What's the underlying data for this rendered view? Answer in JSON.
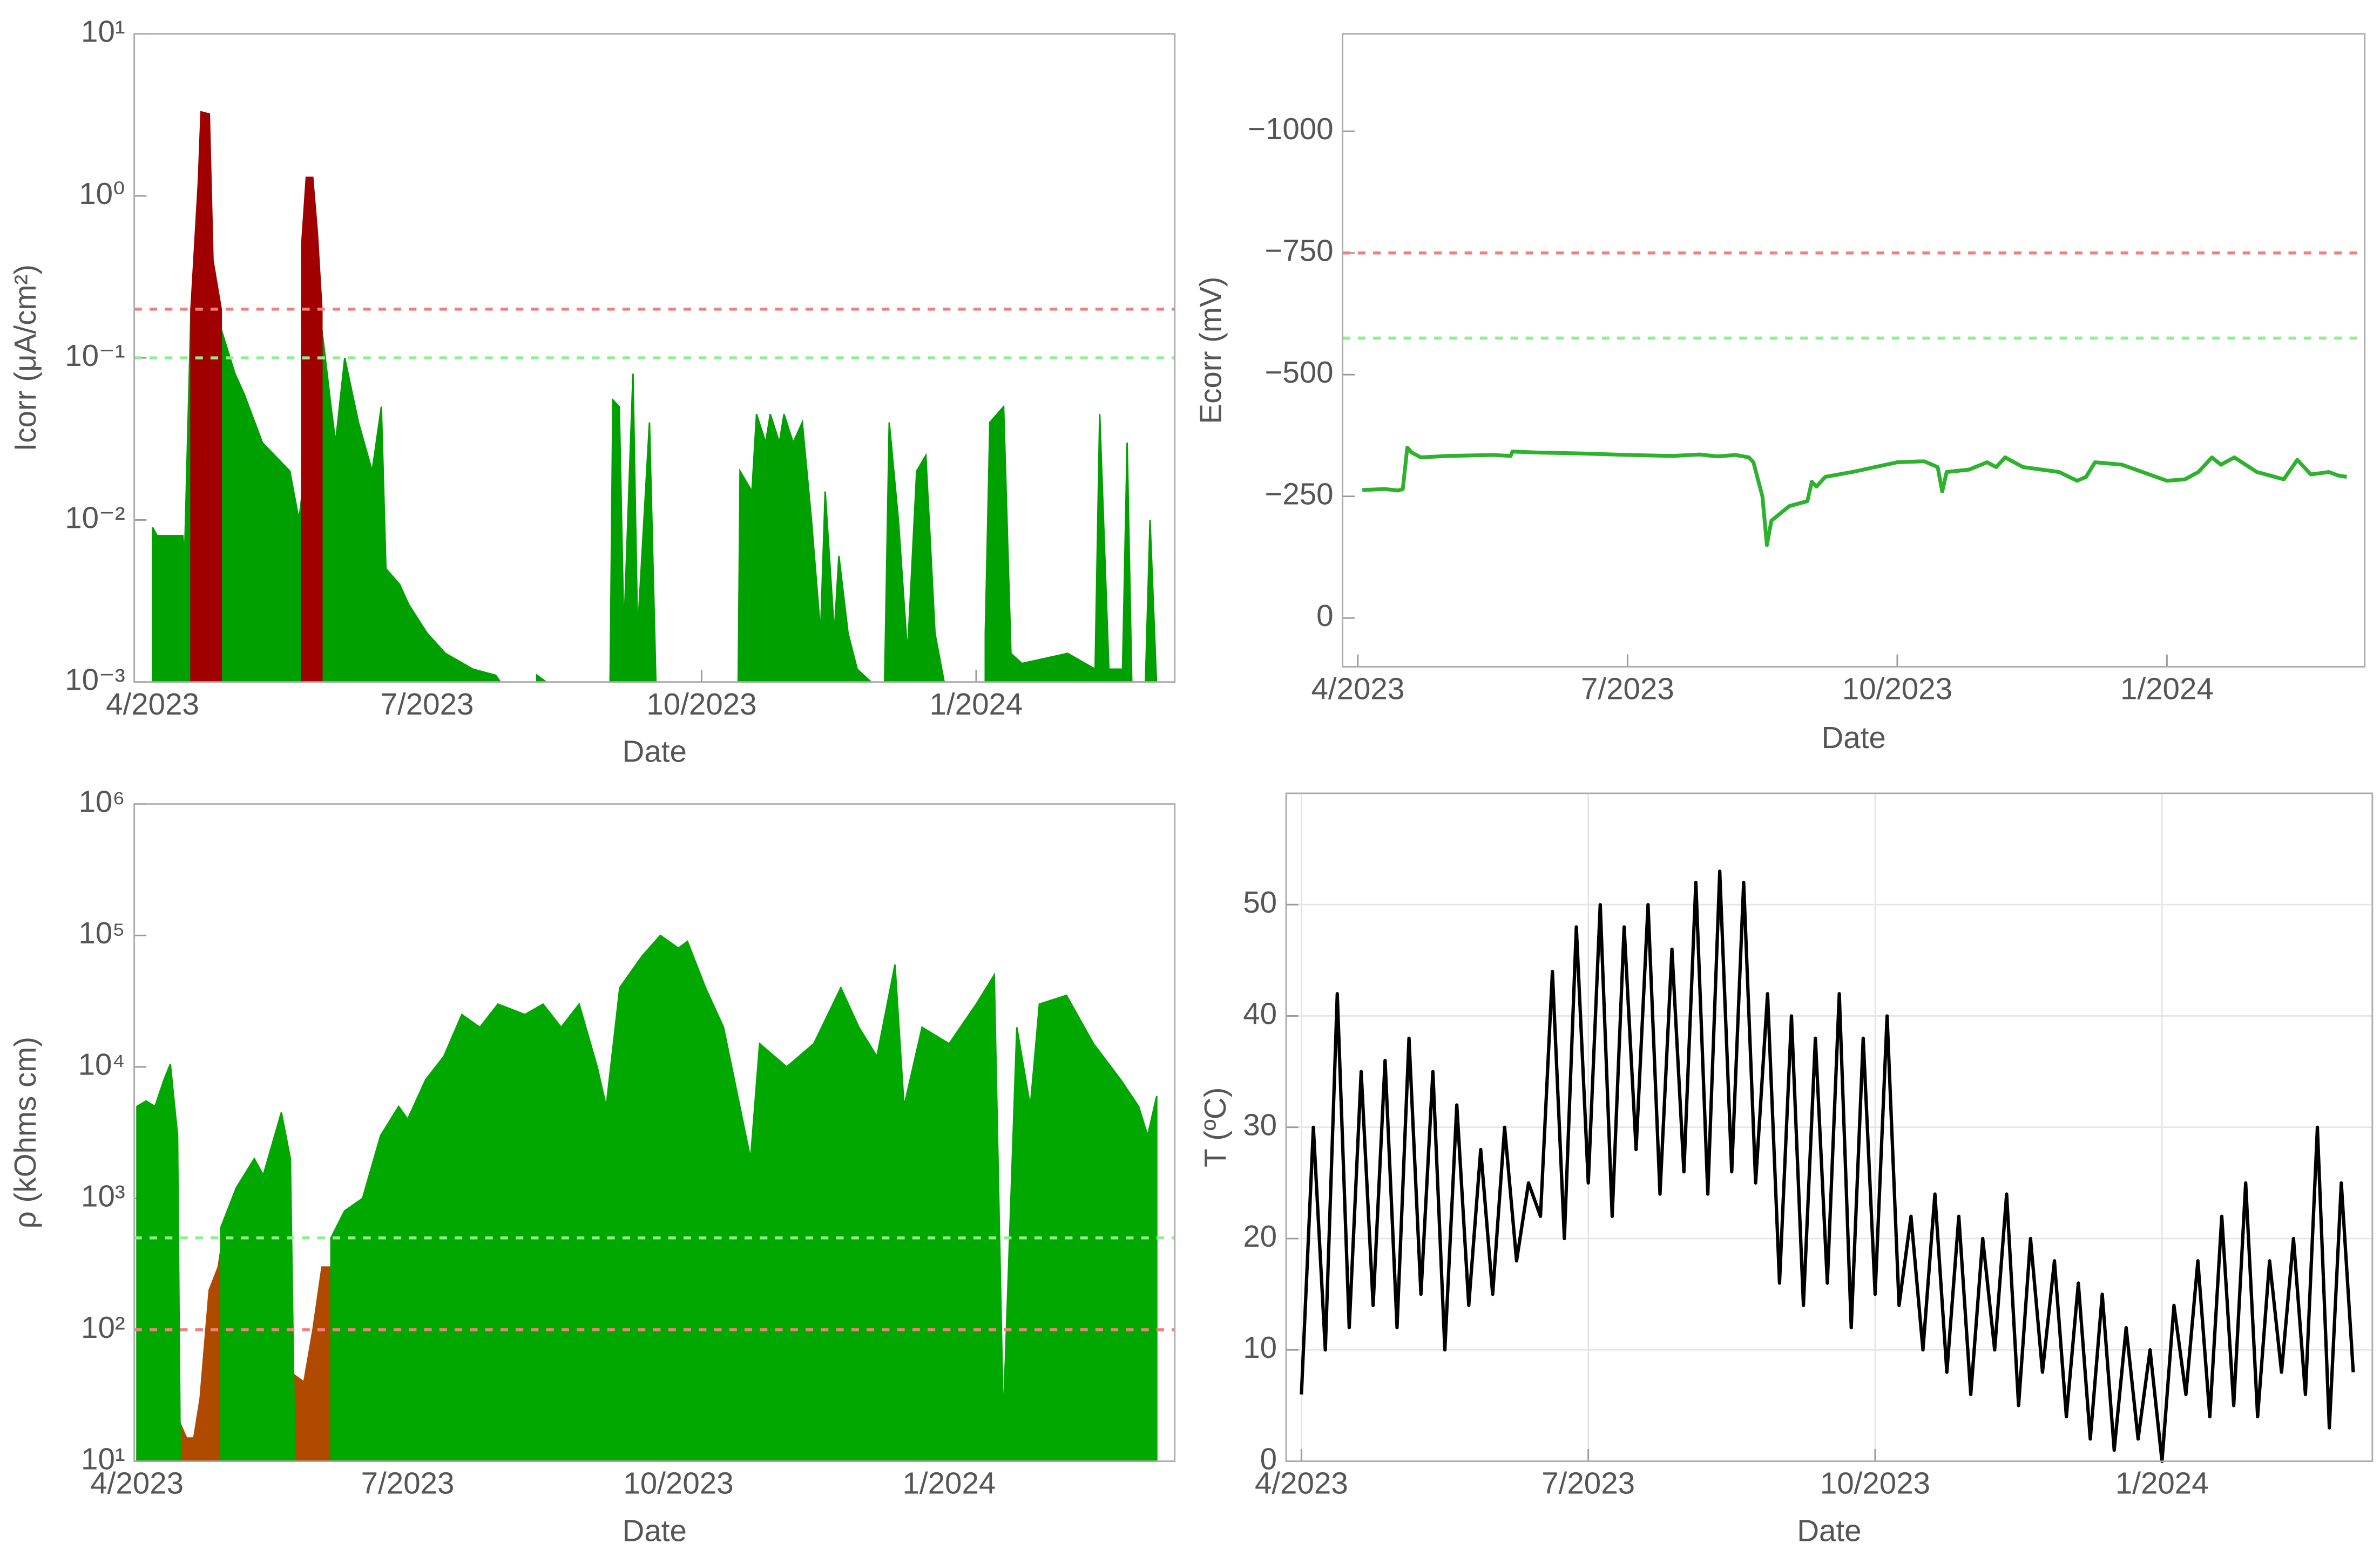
{
  "chart_data": [
    {
      "type": "area",
      "xlabel": "Date",
      "ylabel": "Icorr (μA/cm²)",
      "log_y": true,
      "xlim": [
        -0.2,
        11.17
      ],
      "xticks": [
        {
          "value": 0,
          "label": "4/2023"
        },
        {
          "value": 3,
          "label": "7/2023"
        },
        {
          "value": 6,
          "label": "10/2023"
        },
        {
          "value": 9,
          "label": "1/2024"
        }
      ],
      "ylim": [
        0.001,
        10
      ],
      "yticks": [
        {
          "value": 0.001,
          "label": "10⁻³"
        },
        {
          "value": 0.01,
          "label": "10⁻²"
        },
        {
          "value": 0.1,
          "label": "10⁻¹"
        },
        {
          "value": 1,
          "label": "10⁰"
        },
        {
          "value": 10,
          "label": "10¹"
        }
      ],
      "thresholds": [
        {
          "value": 0.2,
          "color": "#f08080"
        },
        {
          "value": 0.1,
          "color": "#90ee90"
        }
      ],
      "series": [
        {
          "color": "#00a000",
          "x": [
            0,
            0.05,
            0.33,
            0.35,
            0.42,
            0.75,
            0.9,
            1.0,
            1.2,
            1.5,
            1.6,
            1.85,
            1.95,
            2.0,
            2.1,
            2.25,
            2.4,
            2.5,
            2.55,
            2.7,
            2.8,
            3.0,
            3.2,
            3.5,
            3.75,
            3.8,
            null,
            4.2,
            4.3,
            null,
            5.0,
            5.03,
            5.1,
            5.15,
            5.25,
            5.3,
            5.43,
            5.5,
            null,
            6.4,
            6.42,
            6.55,
            6.6,
            6.7,
            6.75,
            6.85,
            6.9,
            7.0,
            7.1,
            7.2,
            7.3,
            7.35,
            7.45,
            7.5,
            7.6,
            7.7,
            7.85,
            null,
            8.0,
            8.05,
            8.15,
            8.25,
            8.35,
            8.45,
            8.55,
            8.65,
            null,
            9.1,
            9.15,
            9.3,
            9.38,
            9.5,
            10.0,
            10.3,
            10.35,
            10.45,
            10.6,
            10.65,
            10.7,
            10.85,
            10.9,
            10.97
          ],
          "values": [
            0.009,
            0.008,
            0.008,
            0.006,
            0.2,
            0.15,
            0.08,
            0.06,
            0.03,
            0.02,
            0.01,
            0.15,
            0.05,
            0.03,
            0.1,
            0.04,
            0.02,
            0.05,
            0.005,
            0.004,
            0.003,
            0.002,
            0.0015,
            0.0012,
            0.0011,
            0.001,
            null,
            0.0011,
            0.001,
            null,
            0.001,
            0.055,
            0.05,
            0.002,
            0.08,
            0.002,
            0.04,
            0.001,
            null,
            0.001,
            0.02,
            0.015,
            0.045,
            0.03,
            0.045,
            0.03,
            0.045,
            0.03,
            0.04,
            0.01,
            0.002,
            0.015,
            0.002,
            0.006,
            0.002,
            0.0012,
            0.001,
            null,
            0.001,
            0.04,
            0.01,
            0.0015,
            0.02,
            0.025,
            0.002,
            0.001,
            null,
            0.002,
            0.04,
            0.05,
            0.0015,
            0.0013,
            0.0015,
            0.0012,
            0.045,
            0.0012,
            0.0012,
            0.03,
            0.001,
            0.001,
            0.01,
            0.001
          ]
        },
        {
          "color": "#a00000",
          "x": [
            0.42,
            0.5,
            0.53,
            0.62,
            0.66,
            0.75,
            null,
            1.63,
            1.68,
            1.75,
            1.8,
            1.85
          ],
          "values": [
            0.2,
            1.2,
            3.3,
            3.2,
            0.4,
            0.2,
            null,
            0.5,
            1.3,
            1.3,
            0.6,
            0.2
          ]
        }
      ]
    },
    {
      "type": "line",
      "xlabel": "Date",
      "ylabel": "Ecorr (mV)",
      "xlim": [
        -0.17,
        11.2
      ],
      "xticks": [
        {
          "value": 0,
          "label": "4/2023"
        },
        {
          "value": 3,
          "label": "7/2023"
        },
        {
          "value": 6,
          "label": "10/2023"
        },
        {
          "value": 9,
          "label": "1/2024"
        }
      ],
      "ylim": [
        100,
        -1200
      ],
      "yticks": [
        0,
        {
          "value": -250,
          "label": "−250"
        },
        {
          "value": -500,
          "label": "−500"
        },
        {
          "value": -750,
          "label": "−750"
        },
        {
          "value": -1000,
          "label": "−1000"
        }
      ],
      "thresholds": [
        {
          "value": -750,
          "color": "#f08080"
        },
        {
          "value": -575,
          "color": "#90ee90"
        }
      ],
      "series": [
        {
          "color": "#2db22d",
          "x": [
            0.05,
            0.3,
            0.45,
            0.5,
            0.55,
            0.6,
            0.7,
            1.0,
            1.5,
            1.7,
            1.72,
            2.0,
            2.5,
            3.0,
            3.5,
            3.8,
            4.0,
            4.2,
            4.35,
            4.4,
            4.5,
            4.55,
            4.6,
            4.8,
            5.0,
            5.05,
            5.1,
            5.2,
            5.5,
            6.0,
            6.3,
            6.45,
            6.5,
            6.55,
            6.8,
            7.0,
            7.1,
            7.2,
            7.4,
            7.8,
            8.0,
            8.1,
            8.2,
            8.5,
            9.0,
            9.2,
            9.35,
            9.5,
            9.6,
            9.75,
            10.0,
            10.3,
            10.45,
            10.6,
            10.8,
            10.9,
            11.0
          ],
          "values": [
            -263,
            -265,
            -262,
            -265,
            -350,
            -340,
            -330,
            -333,
            -335,
            -333,
            -342,
            -340,
            -338,
            -335,
            -333,
            -336,
            -332,
            -335,
            -330,
            -320,
            -250,
            -150,
            -200,
            -230,
            -240,
            -280,
            -270,
            -290,
            -300,
            -320,
            -322,
            -310,
            -260,
            -300,
            -305,
            -320,
            -310,
            -330,
            -310,
            -300,
            -282,
            -290,
            -320,
            -315,
            -282,
            -285,
            -300,
            -330,
            -315,
            -330,
            -300,
            -285,
            -325,
            -295,
            -300,
            -293,
            -290
          ]
        }
      ]
    },
    {
      "type": "area",
      "xlabel": "Date",
      "ylabel": "ρ (kOhms cm)",
      "log_y": true,
      "xlim": [
        -0.03,
        11.5
      ],
      "xticks": [
        {
          "value": 0,
          "label": "4/2023"
        },
        {
          "value": 3,
          "label": "7/2023"
        },
        {
          "value": 6,
          "label": "10/2023"
        },
        {
          "value": 9,
          "label": "1/2024"
        }
      ],
      "ylim": [
        10,
        1000000
      ],
      "yticks": [
        {
          "value": 10,
          "label": "10¹"
        },
        {
          "value": 100,
          "label": "10²"
        },
        {
          "value": 1000,
          "label": "10³"
        },
        {
          "value": 10000,
          "label": "10⁴"
        },
        {
          "value": 100000,
          "label": "10⁵"
        },
        {
          "value": 1000000,
          "label": "10⁶"
        }
      ],
      "thresholds": [
        {
          "value": 500,
          "color": "#90ee90"
        },
        {
          "value": 100,
          "color": "#f08080"
        }
      ],
      "series": [
        {
          "color": "#b04a00",
          "x": [
            0.47,
            0.55,
            0.63,
            0.7,
            0.8,
            0.9,
            0.95,
            null,
            1.75,
            1.85,
            1.95,
            2.05,
            2.2
          ],
          "values": [
            20,
            15,
            15,
            30,
            200,
            300,
            500,
            null,
            45,
            40,
            100,
            300,
            300
          ]
        },
        {
          "color": "#00a800",
          "x": [
            0,
            0.1,
            0.2,
            0.3,
            0.37,
            0.45,
            0.48,
            null,
            0.93,
            1.1,
            1.3,
            1.4,
            1.6,
            1.7,
            1.75,
            null,
            2.15,
            2.3,
            2.5,
            2.7,
            2.9,
            3.0,
            3.2,
            3.4,
            3.6,
            3.8,
            4.0,
            4.3,
            4.5,
            4.7,
            4.9,
            5.1,
            5.2,
            5.35,
            5.6,
            5.8,
            6.0,
            6.1,
            6.3,
            6.5,
            6.8,
            6.9,
            7.2,
            7.5,
            7.8,
            8.0,
            8.2,
            8.4,
            8.5,
            8.7,
            9.0,
            9.3,
            9.5,
            9.6,
            9.75,
            9.9,
            10.0,
            10.3,
            10.6,
            10.9,
            11.1,
            11.2,
            11.3
          ],
          "values": [
            5000,
            5500,
            5000,
            8000,
            10500,
            3000,
            10,
            null,
            600,
            1200,
            2000,
            1500,
            4500,
            2000,
            10,
            null,
            500,
            800,
            1000,
            3000,
            5000,
            4000,
            8000,
            12000,
            25000,
            20000,
            30000,
            25000,
            30000,
            20000,
            30000,
            10000,
            5000,
            40000,
            70000,
            100000,
            80000,
            90000,
            40000,
            20000,
            2000,
            15000,
            10000,
            15000,
            40000,
            20000,
            12000,
            60000,
            5000,
            20000,
            15000,
            30000,
            50000,
            20,
            20000,
            5000,
            30000,
            35000,
            15000,
            8000,
            5000,
            3000,
            6000
          ]
        }
      ]
    },
    {
      "type": "line",
      "xlabel": "Date",
      "ylabel": "T (ºC)",
      "grid": true,
      "xlim": [
        -0.16,
        11.2
      ],
      "xticks": [
        {
          "value": 0,
          "label": "4/2023"
        },
        {
          "value": 3,
          "label": "7/2023"
        },
        {
          "value": 6,
          "label": "10/2023"
        },
        {
          "value": 9,
          "label": "1/2024"
        }
      ],
      "ylim": [
        0,
        60
      ],
      "yticks": [
        0,
        10,
        20,
        30,
        40,
        50
      ],
      "series": [
        {
          "color": "#000000",
          "x": [
            0,
            0.125,
            0.25,
            0.375,
            0.5,
            0.625,
            0.75,
            0.875,
            1.0,
            1.125,
            1.25,
            1.375,
            1.5,
            1.625,
            1.75,
            1.875,
            2.0,
            2.125,
            2.25,
            2.375,
            2.5,
            2.625,
            2.75,
            2.875,
            3.0,
            3.125,
            3.25,
            3.375,
            3.5,
            3.625,
            3.75,
            3.875,
            4.0,
            4.125,
            4.25,
            4.375,
            4.5,
            4.625,
            4.75,
            4.875,
            5.0,
            5.125,
            5.25,
            5.375,
            5.5,
            5.625,
            5.75,
            5.875,
            6.0,
            6.125,
            6.25,
            6.375,
            6.5,
            6.625,
            6.75,
            6.875,
            7.0,
            7.125,
            7.25,
            7.375,
            7.5,
            7.625,
            7.75,
            7.875,
            8.0,
            8.125,
            8.25,
            8.375,
            8.5,
            8.625,
            8.75,
            8.875,
            9.0,
            9.125,
            9.25,
            9.375,
            9.5,
            9.625,
            9.75,
            9.875,
            10.0,
            10.125,
            10.25,
            10.375,
            10.5,
            10.625,
            10.75,
            10.875,
            11.0
          ],
          "values": [
            6,
            30,
            10,
            42,
            12,
            35,
            14,
            36,
            12,
            38,
            15,
            35,
            10,
            32,
            14,
            28,
            15,
            30,
            18,
            25,
            22,
            44,
            20,
            48,
            25,
            50,
            22,
            48,
            28,
            50,
            24,
            46,
            26,
            52,
            24,
            53,
            26,
            52,
            25,
            42,
            16,
            40,
            14,
            38,
            16,
            42,
            12,
            38,
            15,
            40,
            14,
            22,
            10,
            24,
            8,
            22,
            6,
            20,
            10,
            24,
            5,
            20,
            8,
            18,
            4,
            16,
            2,
            15,
            1,
            12,
            2,
            10,
            0,
            14,
            6,
            18,
            4,
            22,
            5,
            25,
            4,
            18,
            8,
            20,
            6,
            30,
            3,
            25,
            8
          ]
        }
      ]
    }
  ]
}
